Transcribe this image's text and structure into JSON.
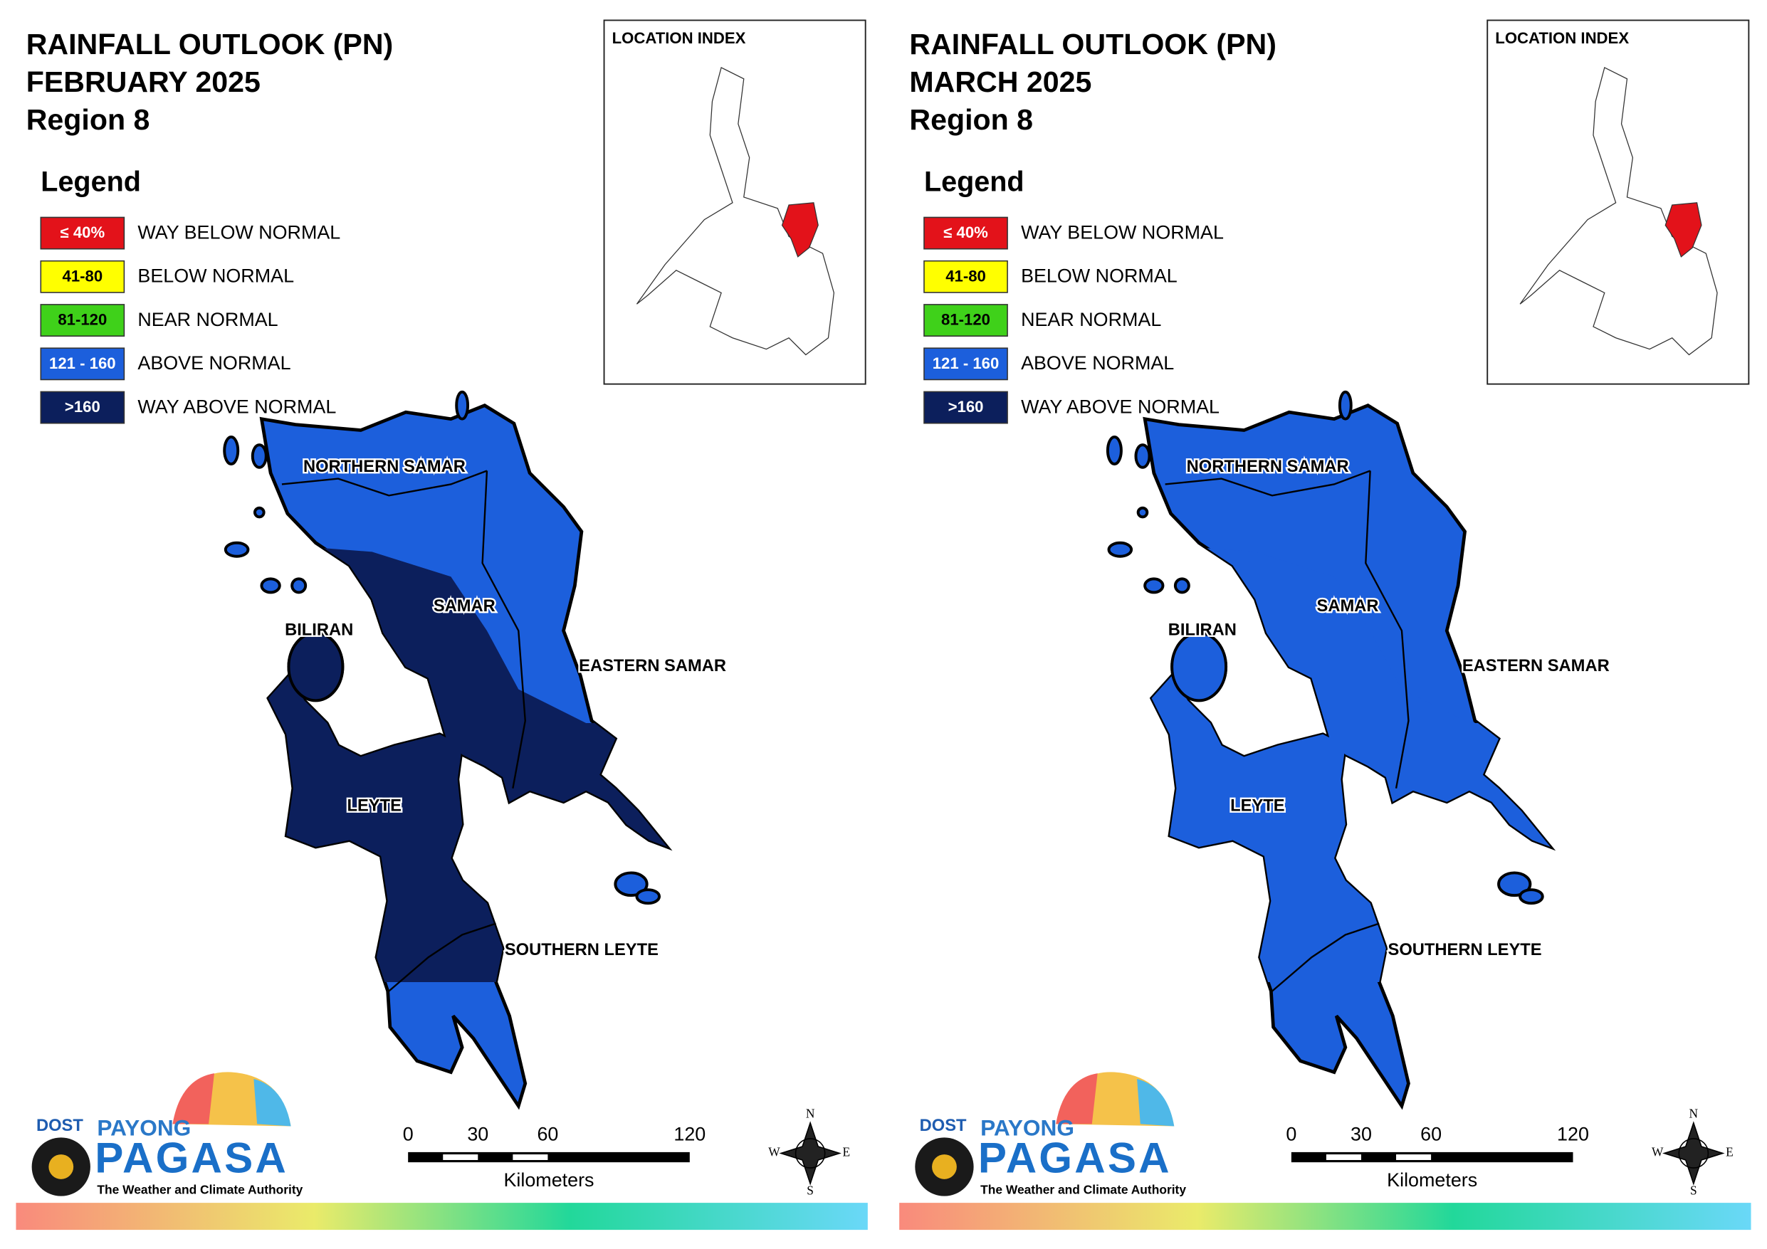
{
  "panels": [
    {
      "title": [
        "RAINFALL OUTLOOK (PN)",
        "FEBRUARY 2025",
        "Region 8"
      ],
      "legend_title": "Legend",
      "legend": [
        {
          "range": "≤ 40%",
          "label": "WAY BELOW NORMAL",
          "color": "#e3121a"
        },
        {
          "range": "41-80",
          "label": "BELOW NORMAL",
          "color": "#ffff00"
        },
        {
          "range": "81-120",
          "label": "NEAR NORMAL",
          "color": "#3fd11a"
        },
        {
          "range": "121 - 160",
          "label": "ABOVE NORMAL",
          "color": "#1c5fdc"
        },
        {
          "range": ">160",
          "label": "WAY ABOVE NORMAL",
          "color": "#0c1f5c"
        }
      ],
      "location_index": "LOCATION INDEX",
      "map_labels": [
        "NORTHERN SAMAR",
        "SAMAR",
        "EASTERN SAMAR",
        "BILIRAN",
        "LEYTE",
        "SOUTHERN LEYTE"
      ],
      "map_colors": {
        "upper": "#1c5fdc",
        "lower": "#0c1f5c"
      },
      "scale": {
        "ticks": [
          "0",
          "30",
          "60",
          "120"
        ],
        "unit": "Kilometers"
      },
      "compass": [
        "N",
        "E",
        "S",
        "W"
      ],
      "logo": {
        "dost": "DOST",
        "payong": "PAYONG",
        "pagasa": "PAGASA",
        "tagline": "The Weather and Climate Authority"
      }
    },
    {
      "title": [
        "RAINFALL OUTLOOK (PN)",
        "MARCH 2025",
        "Region 8"
      ],
      "legend_title": "Legend",
      "legend": [
        {
          "range": "≤ 40%",
          "label": "WAY BELOW NORMAL",
          "color": "#e3121a"
        },
        {
          "range": "41-80",
          "label": "BELOW NORMAL",
          "color": "#ffff00"
        },
        {
          "range": "81-120",
          "label": "NEAR NORMAL",
          "color": "#3fd11a"
        },
        {
          "range": "121 - 160",
          "label": "ABOVE NORMAL",
          "color": "#1c5fdc"
        },
        {
          "range": ">160",
          "label": "WAY ABOVE NORMAL",
          "color": "#0c1f5c"
        }
      ],
      "location_index": "LOCATION INDEX",
      "map_labels": [
        "NORTHERN SAMAR",
        "SAMAR",
        "EASTERN SAMAR",
        "BILIRAN",
        "LEYTE",
        "SOUTHERN LEYTE"
      ],
      "map_colors": {
        "upper": "#1c5fdc",
        "lower": "#1c5fdc"
      },
      "scale": {
        "ticks": [
          "0",
          "30",
          "60",
          "120"
        ],
        "unit": "Kilometers"
      },
      "compass": [
        "N",
        "E",
        "S",
        "W"
      ],
      "logo": {
        "dost": "DOST",
        "payong": "PAYONG",
        "pagasa": "PAGASA",
        "tagline": "The Weather and Climate Authority"
      }
    }
  ]
}
